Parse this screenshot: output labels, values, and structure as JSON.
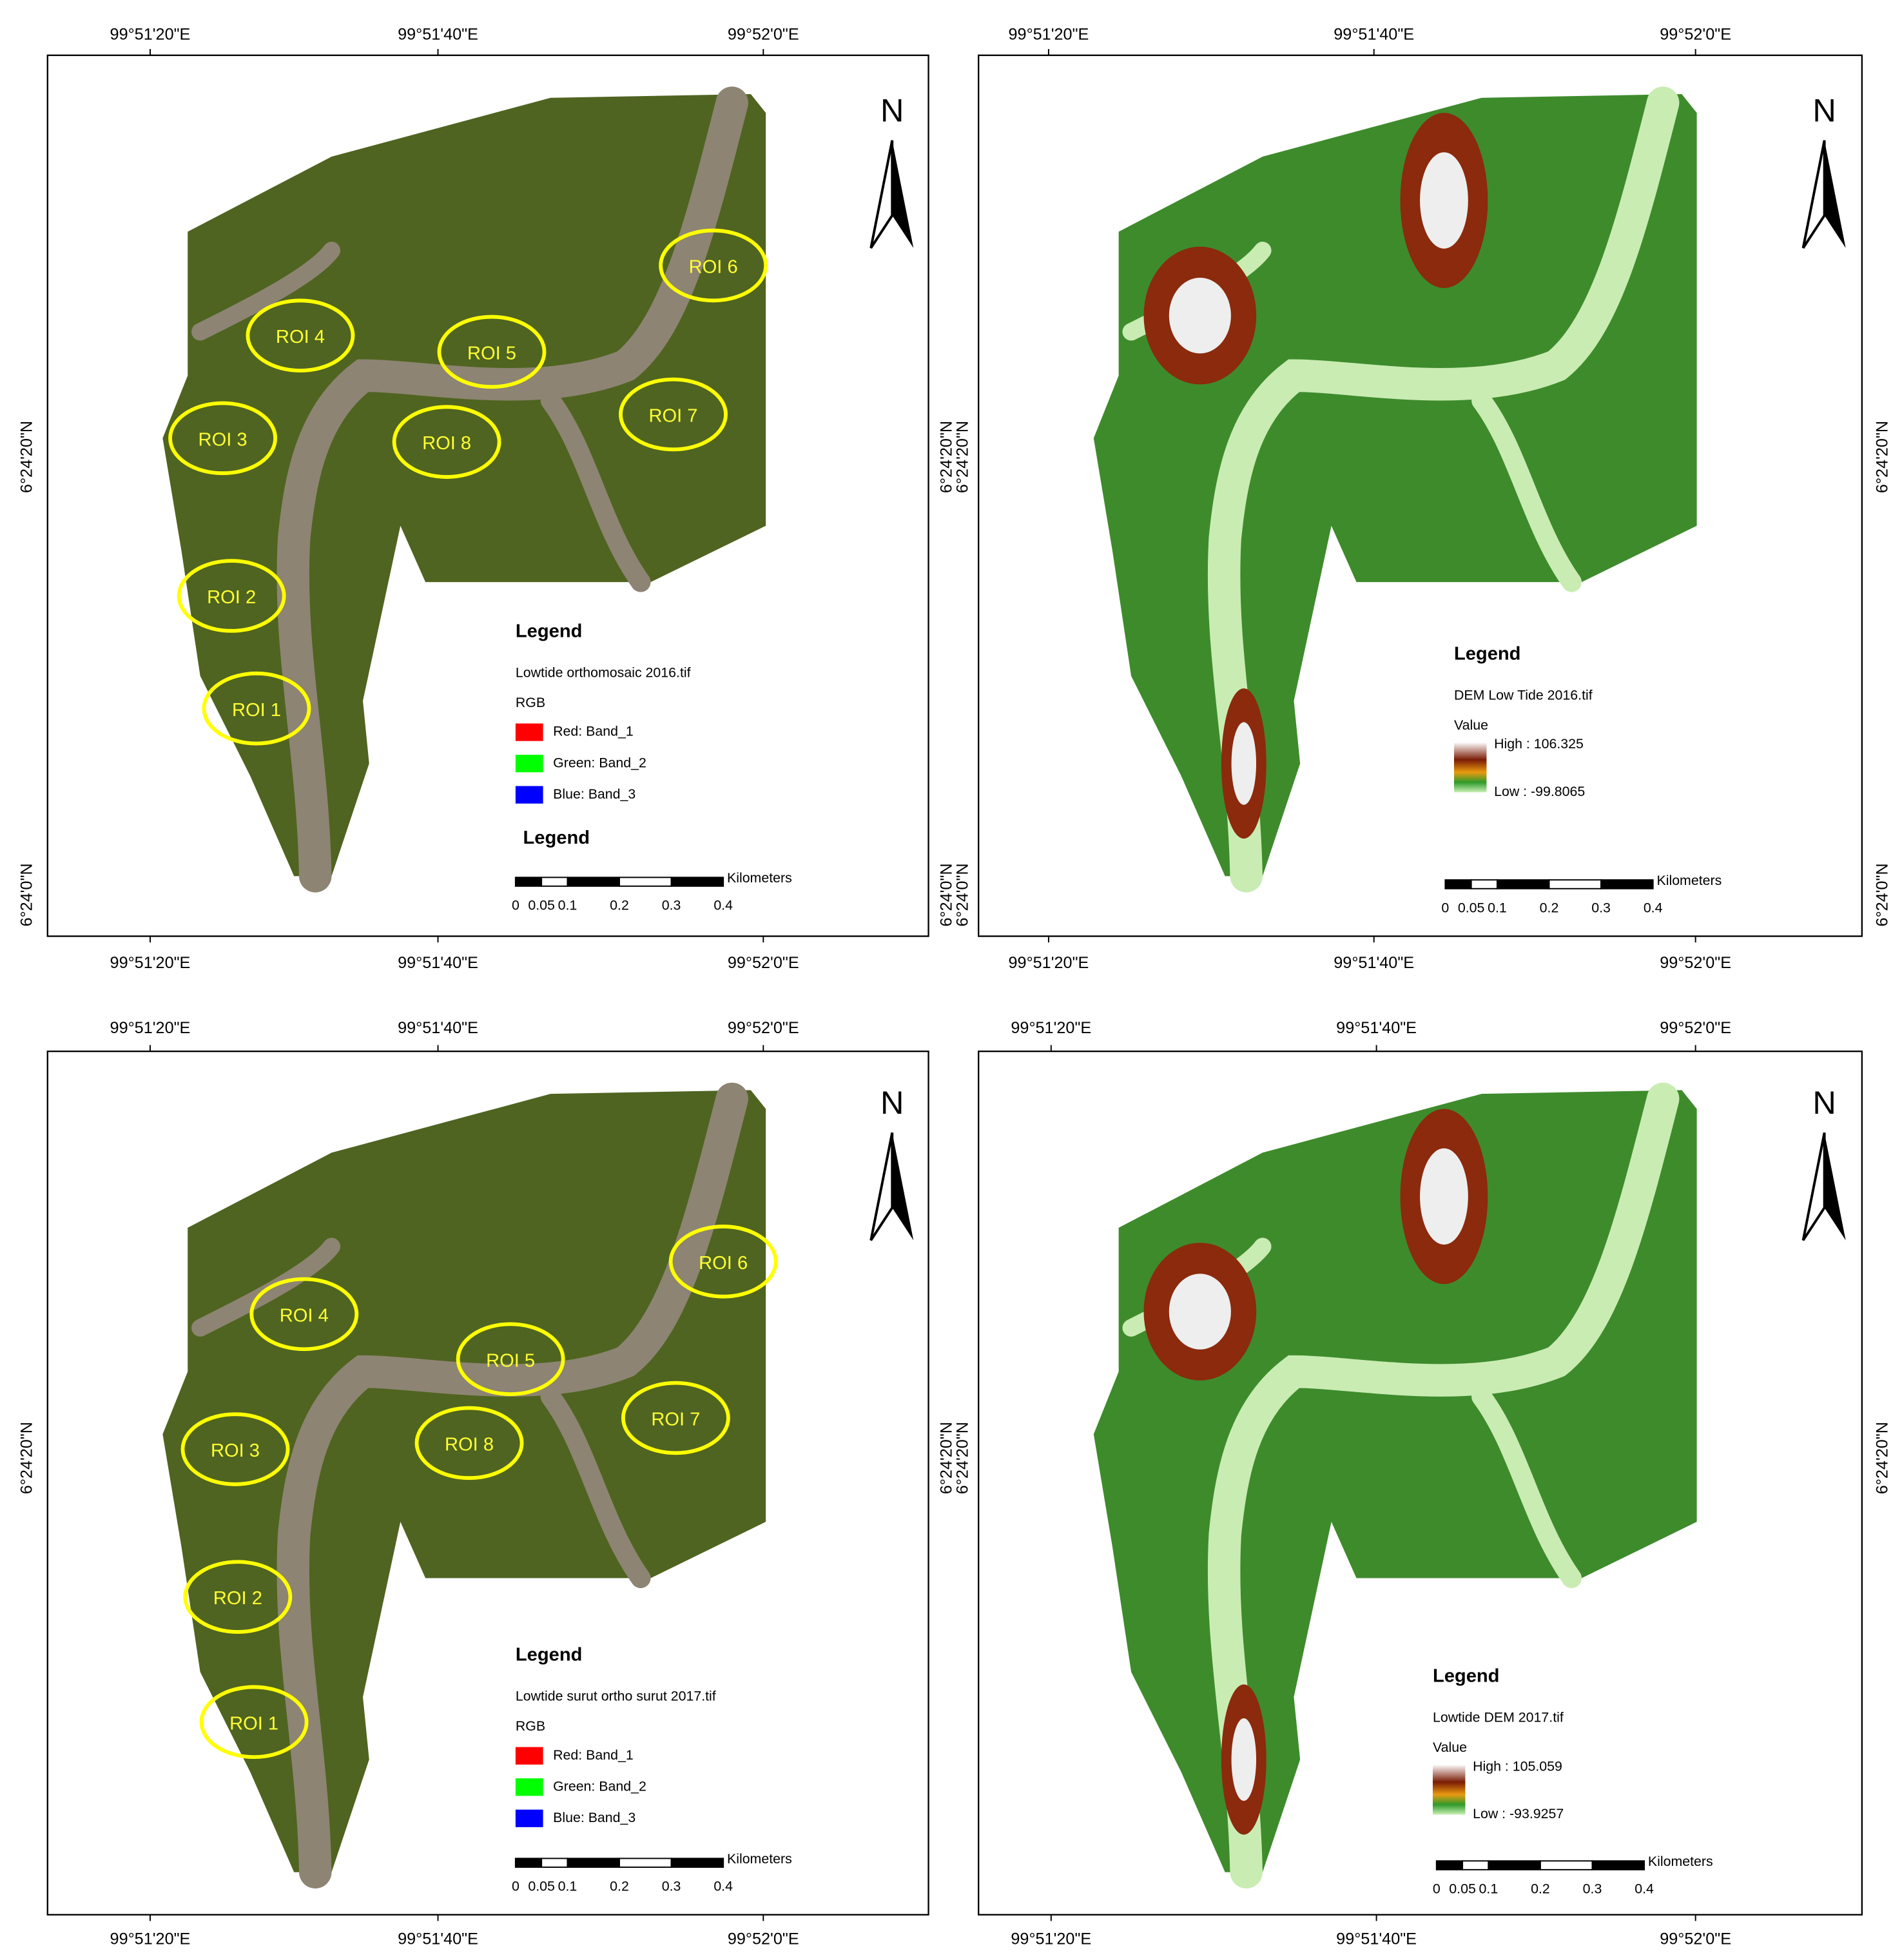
{
  "panels": [
    {
      "top_labels": [
        "99°51'20\"E",
        "99°51'40\"E",
        "99°52'0\"E"
      ],
      "bottom_labels": [
        "99°51'20\"E",
        "99°51'40\"E",
        "99°52'0\"E"
      ],
      "left_labels": [
        "6°24'20\"N",
        "6°24'0\"N"
      ],
      "right_labels": [
        "6°24'20\"N",
        "6°24'0\"N"
      ],
      "north": "N",
      "rois": [
        "ROI 1",
        "ROI 2",
        "ROI 3",
        "ROI 4",
        "ROI 5",
        "ROI 6",
        "ROI 7",
        "ROI 8"
      ],
      "legend": {
        "title": "Legend",
        "layer": "Lowtide orthomosaic 2016.tif",
        "group": "RGB",
        "bands": [
          {
            "label": "Red:  Band_1",
            "color": "#ff0000"
          },
          {
            "label": "Green: Band_2",
            "color": "#00ff00"
          },
          {
            "label": "Blue:  Band_3",
            "color": "#0000ff"
          }
        ]
      },
      "extra_legend": "Legend",
      "scale": {
        "unit": "Kilometers",
        "labels": [
          "0",
          "0.05",
          "0.1",
          "0.2",
          "0.3",
          "0.4"
        ]
      }
    },
    {
      "top_labels": [
        "99°51'20\"E",
        "99°51'40\"E",
        "99°52'0\"E"
      ],
      "bottom_labels": [
        "99°51'20\"E",
        "99°51'40\"E",
        "99°52'0\"E"
      ],
      "left_labels": [
        "6°24'20\"N",
        "6°24'0\"N"
      ],
      "right_labels": [
        "6°24'20\"N",
        "6°24'0\"N"
      ],
      "north": "N",
      "legend": {
        "title": "Legend",
        "layer": "DEM Low Tide 2016.tif",
        "group": "Value",
        "high": "High : 106.325",
        "low": "Low : -99.8065"
      },
      "scale": {
        "unit": "Kilometers",
        "labels": [
          "0",
          "0.05",
          "0.1",
          "0.2",
          "0.3",
          "0.4"
        ]
      }
    },
    {
      "top_labels": [
        "99°51'20\"E",
        "99°51'40\"E",
        "99°52'0\"E"
      ],
      "bottom_labels": [
        "99°51'20\"E",
        "99°51'40\"E",
        "99°52'0\"E"
      ],
      "left_labels": [
        "6°24'20\"N"
      ],
      "right_labels": [
        "6°24'20\"N"
      ],
      "north": "N",
      "rois": [
        "ROI 1",
        "ROI 2",
        "ROI 3",
        "ROI 4",
        "ROI 5",
        "ROI 6",
        "ROI 7",
        "ROI 8"
      ],
      "legend": {
        "title": "Legend",
        "layer": "Lowtide surut ortho surut 2017.tif",
        "group": "RGB",
        "bands": [
          {
            "label": "Red:  Band_1",
            "color": "#ff0000"
          },
          {
            "label": "Green: Band_2",
            "color": "#00ff00"
          },
          {
            "label": "Blue:  Band_3",
            "color": "#0000ff"
          }
        ]
      },
      "scale": {
        "unit": "Kilometers",
        "labels": [
          "0",
          "0.05",
          "0.1",
          "0.2",
          "0.3",
          "0.4"
        ]
      }
    },
    {
      "top_labels": [
        "99°51'20\"E",
        "99°51'40\"E",
        "99°52'0\"E"
      ],
      "bottom_labels": [
        "99°51'20\"E",
        "99°51'40\"E",
        "99°52'0\"E"
      ],
      "left_labels": [
        "6°24'20\"N"
      ],
      "right_labels": [
        "6°24'20\"N"
      ],
      "north": "N",
      "legend": {
        "title": "Legend",
        "layer": "Lowtide DEM 2017.tif",
        "group": "Value",
        "high": "High : 105.059",
        "low": "Low : -93.9257"
      },
      "scale": {
        "unit": "Kilometers",
        "labels": [
          "0",
          "0.05",
          "0.1",
          "0.2",
          "0.3",
          "0.4"
        ]
      }
    }
  ]
}
